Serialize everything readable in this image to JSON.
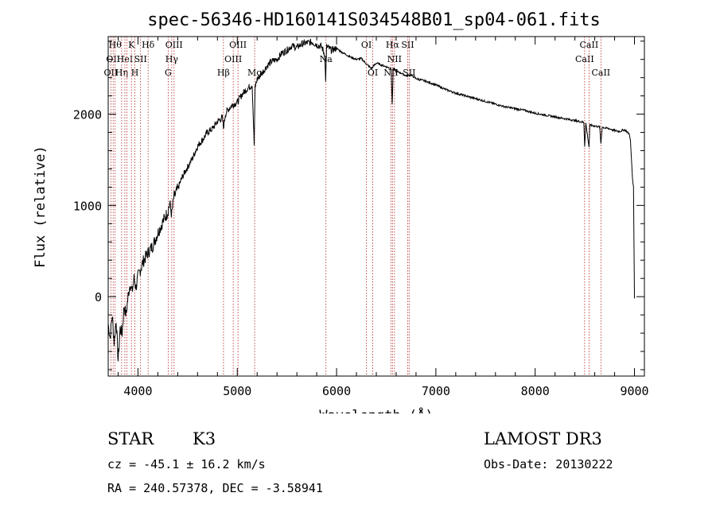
{
  "chart_data": {
    "type": "line",
    "title": "spec-56346-HD160141S034548B01_sp04-061.fits",
    "xlabel": "Wavelength (Å)",
    "ylabel": "Flux (relative)",
    "xlim": [
      3700,
      9100
    ],
    "ylim": [
      -870,
      2850
    ],
    "x_ticks": [
      4000,
      5000,
      6000,
      7000,
      8000,
      9000
    ],
    "y_ticks": [
      0,
      1000,
      2000
    ],
    "series": [
      {
        "name": "flux",
        "x": [
          3700,
          3720,
          3740,
          3760,
          3780,
          3800,
          3820,
          3840,
          3860,
          3880,
          3900,
          3920,
          3940,
          3960,
          3980,
          4000,
          4050,
          4100,
          4150,
          4200,
          4250,
          4300,
          4320,
          4340,
          4360,
          4400,
          4450,
          4500,
          4550,
          4600,
          4650,
          4700,
          4750,
          4800,
          4850,
          4860,
          4880,
          4900,
          4950,
          5000,
          5050,
          5100,
          5150,
          5170,
          5180,
          5200,
          5250,
          5300,
          5350,
          5400,
          5450,
          5500,
          5550,
          5600,
          5650,
          5700,
          5750,
          5800,
          5850,
          5880,
          5890,
          5900,
          5950,
          6000,
          6050,
          6100,
          6150,
          6200,
          6250,
          6300,
          6350,
          6400,
          6450,
          6500,
          6550,
          6560,
          6563,
          6570,
          6600,
          6650,
          6700,
          6750,
          6800,
          6900,
          7000,
          7100,
          7200,
          7300,
          7400,
          7500,
          7600,
          7700,
          7800,
          7900,
          8000,
          8100,
          8200,
          8300,
          8400,
          8490,
          8498,
          8510,
          8542,
          8550,
          8600,
          8650,
          8662,
          8675,
          8700,
          8750,
          8800,
          8850,
          8900,
          8950,
          8960,
          8980,
          8990,
          9000
        ],
        "y": [
          -300,
          -450,
          -200,
          -500,
          -250,
          -700,
          -350,
          -400,
          -100,
          -200,
          0,
          150,
          50,
          200,
          100,
          220,
          380,
          480,
          560,
          700,
          820,
          930,
          1020,
          900,
          1080,
          1180,
          1320,
          1420,
          1520,
          1650,
          1720,
          1800,
          1840,
          1920,
          1960,
          1850,
          2000,
          2040,
          2100,
          2130,
          2220,
          2280,
          2320,
          1660,
          2300,
          2380,
          2450,
          2530,
          2580,
          2600,
          2670,
          2700,
          2750,
          2730,
          2770,
          2780,
          2790,
          2760,
          2740,
          2650,
          2380,
          2740,
          2700,
          2720,
          2680,
          2650,
          2620,
          2600,
          2610,
          2550,
          2500,
          2560,
          2540,
          2520,
          2500,
          2100,
          2180,
          2500,
          2470,
          2450,
          2420,
          2430,
          2390,
          2360,
          2320,
          2270,
          2230,
          2200,
          2170,
          2140,
          2110,
          2080,
          2060,
          2040,
          2010,
          1990,
          1970,
          1950,
          1930,
          1910,
          1650,
          1900,
          1640,
          1880,
          1870,
          1860,
          1680,
          1860,
          1850,
          1840,
          1820,
          1810,
          1830,
          1780,
          1700,
          1300,
          1200,
          -20
        ]
      }
    ],
    "spectral_lines": [
      {
        "x": 3727,
        "label": "OII",
        "row": 3
      },
      {
        "x": 3750,
        "label": "OII",
        "row": 2
      },
      {
        "x": 3770,
        "label": "Hθ",
        "row": 1
      },
      {
        "x": 3835,
        "label": "Hη",
        "row": 3
      },
      {
        "x": 3868,
        "label": "HeI",
        "row": 2
      },
      {
        "x": 3889,
        "label": "",
        "row": 0
      },
      {
        "x": 3934,
        "label": "K",
        "row": 1
      },
      {
        "x": 3969,
        "label": "H",
        "row": 3
      },
      {
        "x": 4026,
        "label": "SII",
        "row": 2
      },
      {
        "x": 4102,
        "label": "Hδ",
        "row": 1
      },
      {
        "x": 4304,
        "label": "G",
        "row": 3
      },
      {
        "x": 4340,
        "label": "Hγ",
        "row": 2
      },
      {
        "x": 4363,
        "label": "OIII",
        "row": 1
      },
      {
        "x": 4861,
        "label": "Hβ",
        "row": 3
      },
      {
        "x": 4959,
        "label": "OIII",
        "row": 2
      },
      {
        "x": 5007,
        "label": "OIII",
        "row": 1
      },
      {
        "x": 5175,
        "label": "Mg",
        "row": 3
      },
      {
        "x": 5893,
        "label": "Na",
        "row": 2
      },
      {
        "x": 6300,
        "label": "OI",
        "row": 1
      },
      {
        "x": 6364,
        "label": "OI",
        "row": 3
      },
      {
        "x": 6548,
        "label": "NII",
        "row": 3
      },
      {
        "x": 6563,
        "label": "Hα",
        "row": 1
      },
      {
        "x": 6583,
        "label": "NII",
        "row": 2
      },
      {
        "x": 6716,
        "label": "SII",
        "row": 1
      },
      {
        "x": 6731,
        "label": "SII",
        "row": 3
      },
      {
        "x": 8498,
        "label": "CaII",
        "row": 2
      },
      {
        "x": 8542,
        "label": "CaII",
        "row": 1
      },
      {
        "x": 8662,
        "label": "CaII",
        "row": 3
      }
    ]
  },
  "info": {
    "object_class": "STAR",
    "subclass": "K3",
    "survey": "LAMOST DR3",
    "redshift_line": "cz = -45.1 ± 16.2 km/s",
    "obs_date": "Obs-Date: 20130222",
    "coords": "RA = 240.57378, DEC =  -3.58941"
  },
  "colors": {
    "line_marker": "#b22222",
    "spectrum": "#000000"
  }
}
